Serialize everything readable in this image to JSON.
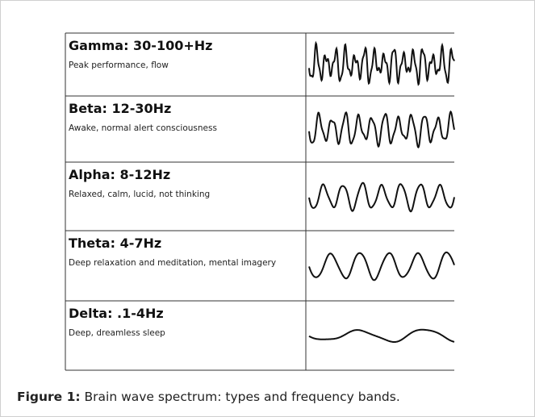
{
  "figure": {
    "rows": [
      {
        "title": "Gamma: 30-100+Hz",
        "description": "Peak performance, flow"
      },
      {
        "title": "Beta: 12-30Hz",
        "description": "Awake, normal alert consciousness"
      },
      {
        "title": "Alpha: 8-12Hz",
        "description": "Relaxed, calm, lucid, not thinking"
      },
      {
        "title": "Theta: 4-7Hz",
        "description": "Deep relaxation and meditation, mental imagery"
      },
      {
        "title": "Delta: .1-4Hz",
        "description": "Deep, dreamless sleep"
      }
    ],
    "caption": {
      "label": "Figure 1:",
      "text": " Brain wave spectrum: types and frequency bands."
    }
  }
}
